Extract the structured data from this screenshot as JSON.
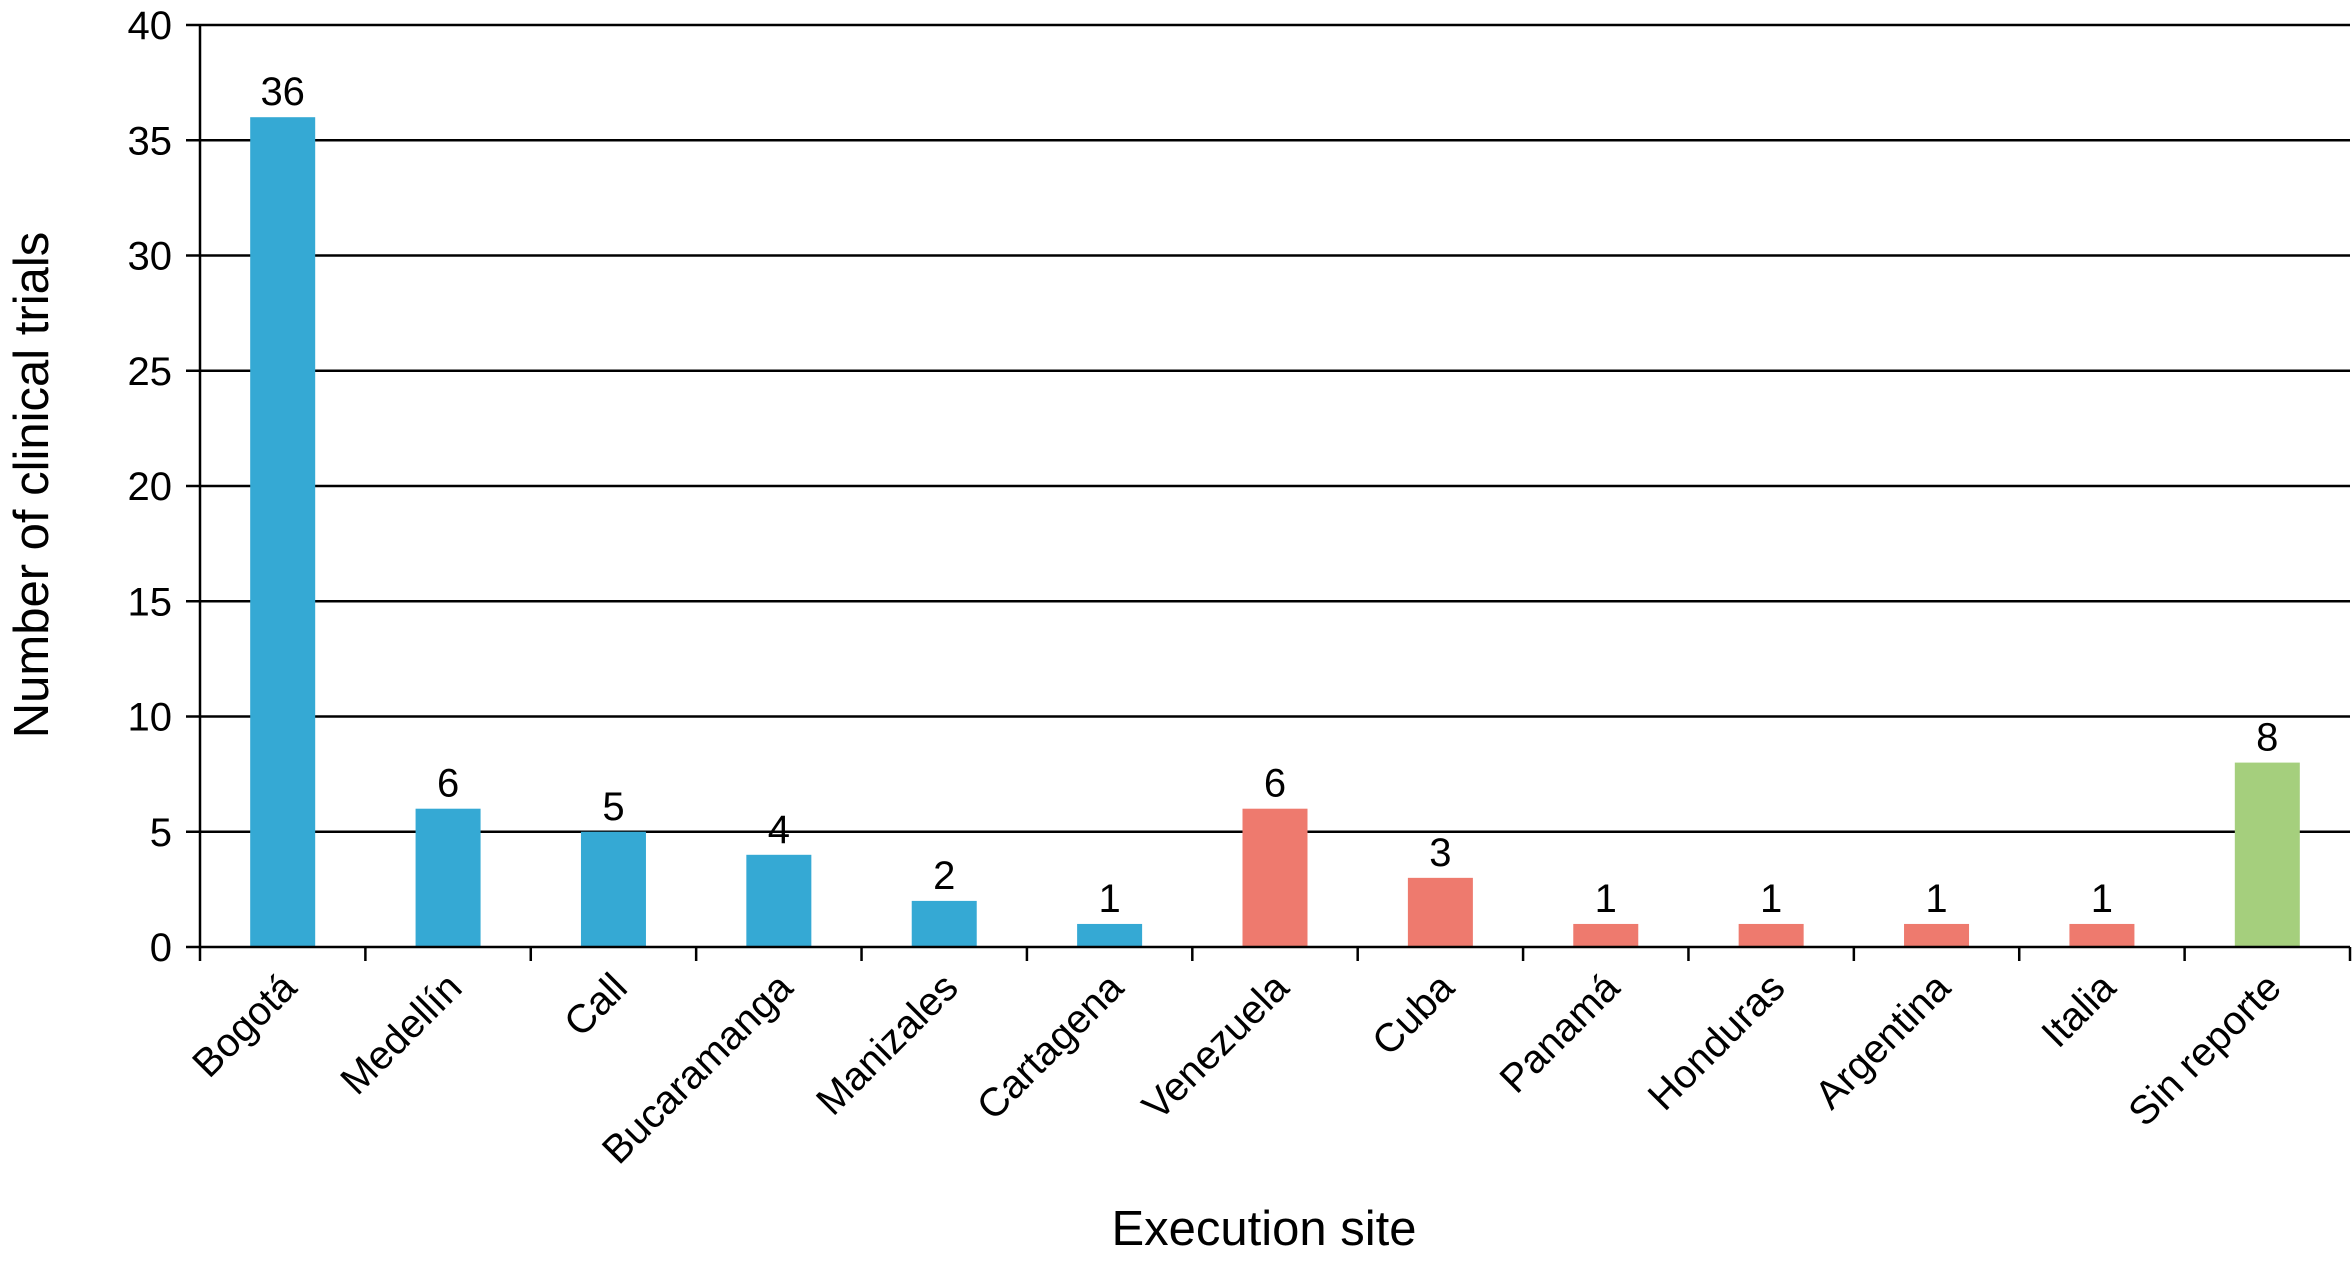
{
  "chart_data": {
    "type": "bar",
    "title": "",
    "xlabel": "Execution site",
    "ylabel": "Number of clinical trials",
    "ylim": [
      0,
      40
    ],
    "yticks": [
      0,
      5,
      10,
      15,
      20,
      25,
      30,
      35,
      40
    ],
    "grid": "horizontal",
    "legend": "none",
    "categories": [
      "Bogotá",
      "Medellín",
      "Call",
      "Bucaramanga",
      "Manizales",
      "Cartagena",
      "Venezuela",
      "Cuba",
      "Panamá",
      "Honduras",
      "Argentina",
      "Italia",
      "Sin reporte"
    ],
    "values": [
      36,
      6,
      5,
      4,
      2,
      1,
      6,
      3,
      1,
      1,
      1,
      1,
      8
    ],
    "data_labels": [
      "36",
      "6",
      "5",
      "4",
      "2",
      "1",
      "6",
      "3",
      "1",
      "1",
      "1",
      "1",
      "8"
    ],
    "bar_colors": [
      "#35a9d4",
      "#35a9d4",
      "#35a9d4",
      "#35a9d4",
      "#35a9d4",
      "#35a9d4",
      "#ee7a6e",
      "#ee7a6e",
      "#ee7a6e",
      "#ee7a6e",
      "#ee7a6e",
      "#ee7a6e",
      "#a5cf7d"
    ]
  }
}
